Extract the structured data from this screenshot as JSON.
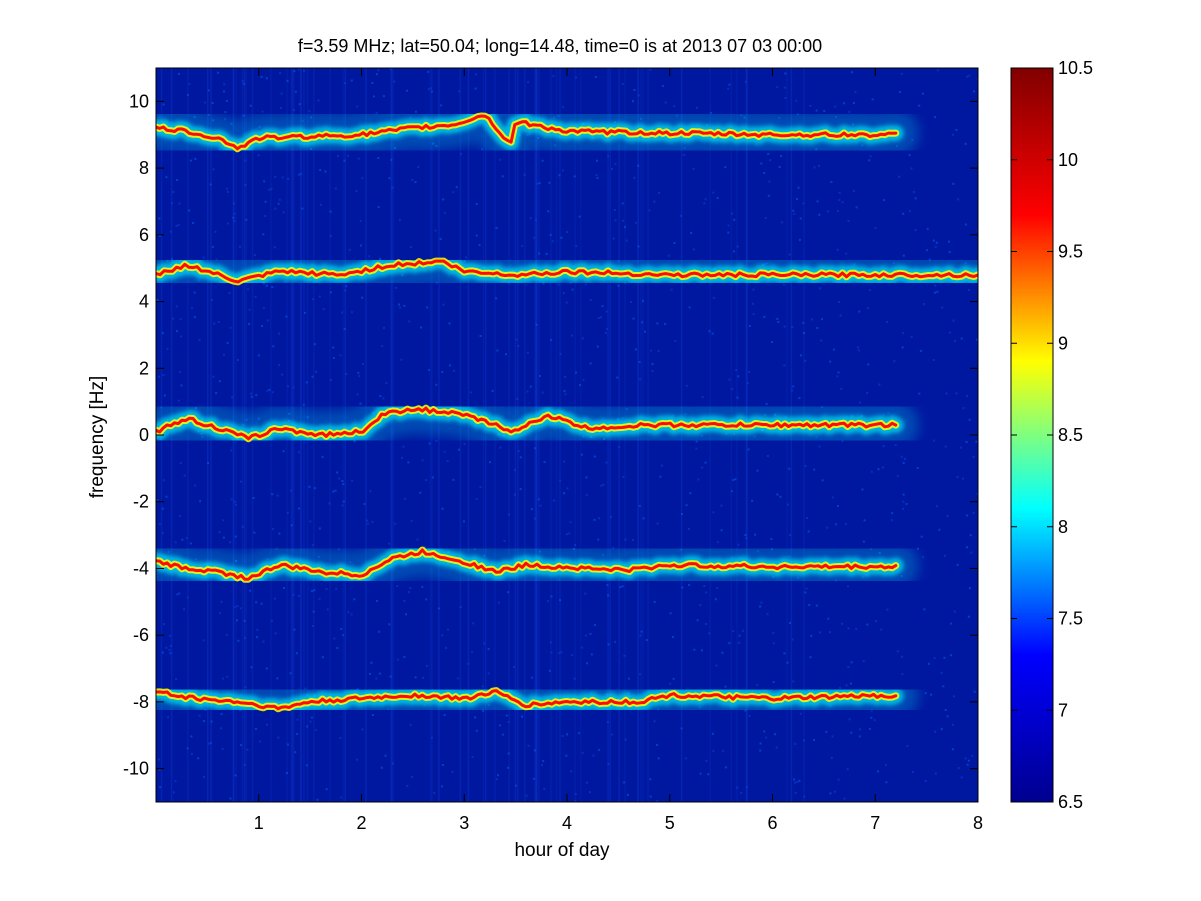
{
  "chart_data": {
    "type": "heatmap",
    "title": "f=3.59 MHz;  lat=50.04; long=14.48, time=0 is at 2013 07 03 00:00",
    "xlabel": "hour of day",
    "ylabel": "frequency [Hz]",
    "xlim": [
      0,
      8
    ],
    "ylim": [
      -11,
      11
    ],
    "xticks": [
      "1",
      "2",
      "3",
      "4",
      "5",
      "6",
      "7",
      "8"
    ],
    "yticks": [
      "-10",
      "-8",
      "-6",
      "-4",
      "-2",
      "0",
      "2",
      "4",
      "6",
      "8",
      "10"
    ],
    "colorbar": {
      "range": [
        6.5,
        10.5
      ],
      "ticks": [
        "6.5",
        "7",
        "7.5",
        "8",
        "8.5",
        "9",
        "9.5",
        "10",
        "10.5"
      ],
      "colormap": "jet"
    },
    "colormap_colors": [
      "#00008f",
      "#0000ff",
      "#00ffff",
      "#ffff00",
      "#ff0000",
      "#800000"
    ],
    "background_color": "#0018a0",
    "grid": false,
    "traces": [
      {
        "name": "band ~9 Hz",
        "x_end": 7.2,
        "points": [
          [
            0.0,
            9.2
          ],
          [
            0.3,
            9.1
          ],
          [
            0.6,
            8.9
          ],
          [
            0.8,
            8.6
          ],
          [
            1.0,
            8.9
          ],
          [
            1.5,
            8.95
          ],
          [
            2.0,
            9.0
          ],
          [
            2.5,
            9.2
          ],
          [
            2.9,
            9.3
          ],
          [
            3.2,
            9.6
          ],
          [
            3.45,
            8.7
          ],
          [
            3.5,
            9.4
          ],
          [
            4.0,
            9.1
          ],
          [
            5.0,
            9.05
          ],
          [
            6.0,
            9.0
          ],
          [
            7.2,
            9.0
          ]
        ]
      },
      {
        "name": "band ~5 Hz",
        "x_end": 8.0,
        "points": [
          [
            0.0,
            4.8
          ],
          [
            0.3,
            5.1
          ],
          [
            0.8,
            4.6
          ],
          [
            1.2,
            4.9
          ],
          [
            1.8,
            4.8
          ],
          [
            2.3,
            5.1
          ],
          [
            2.8,
            5.2
          ],
          [
            3.0,
            4.9
          ],
          [
            3.5,
            4.8
          ],
          [
            4.0,
            4.9
          ],
          [
            5.0,
            4.8
          ],
          [
            6.0,
            4.8
          ],
          [
            8.0,
            4.8
          ]
        ]
      },
      {
        "name": "band ~0 Hz",
        "x_end": 7.2,
        "points": [
          [
            0.0,
            0.1
          ],
          [
            0.3,
            0.5
          ],
          [
            0.6,
            0.2
          ],
          [
            0.9,
            -0.1
          ],
          [
            1.2,
            0.2
          ],
          [
            1.6,
            0.0
          ],
          [
            2.0,
            0.1
          ],
          [
            2.2,
            0.6
          ],
          [
            2.5,
            0.8
          ],
          [
            3.0,
            0.6
          ],
          [
            3.3,
            0.3
          ],
          [
            3.5,
            0.1
          ],
          [
            3.8,
            0.6
          ],
          [
            4.2,
            0.2
          ],
          [
            4.8,
            0.3
          ],
          [
            6.0,
            0.3
          ],
          [
            7.2,
            0.3
          ]
        ]
      },
      {
        "name": "band ~-4 Hz",
        "x_end": 7.2,
        "points": [
          [
            0.0,
            -3.8
          ],
          [
            0.3,
            -4.0
          ],
          [
            0.6,
            -4.1
          ],
          [
            0.9,
            -4.3
          ],
          [
            1.2,
            -3.9
          ],
          [
            1.6,
            -4.1
          ],
          [
            2.0,
            -4.2
          ],
          [
            2.3,
            -3.7
          ],
          [
            2.6,
            -3.5
          ],
          [
            3.0,
            -3.8
          ],
          [
            3.3,
            -4.1
          ],
          [
            3.6,
            -3.9
          ],
          [
            4.2,
            -4.0
          ],
          [
            4.6,
            -4.05
          ],
          [
            5.0,
            -3.9
          ],
          [
            6.0,
            -3.95
          ],
          [
            7.2,
            -3.95
          ]
        ]
      },
      {
        "name": "band ~-8 Hz",
        "x_end": 7.2,
        "points": [
          [
            0.0,
            -7.7
          ],
          [
            0.4,
            -7.9
          ],
          [
            0.8,
            -8.0
          ],
          [
            1.2,
            -8.2
          ],
          [
            1.5,
            -8.0
          ],
          [
            2.0,
            -7.9
          ],
          [
            2.5,
            -7.8
          ],
          [
            3.0,
            -7.9
          ],
          [
            3.3,
            -7.7
          ],
          [
            3.6,
            -8.1
          ],
          [
            4.0,
            -8.0
          ],
          [
            4.7,
            -8.0
          ],
          [
            5.0,
            -7.8
          ],
          [
            6.0,
            -7.9
          ],
          [
            7.2,
            -7.8
          ]
        ]
      }
    ]
  }
}
